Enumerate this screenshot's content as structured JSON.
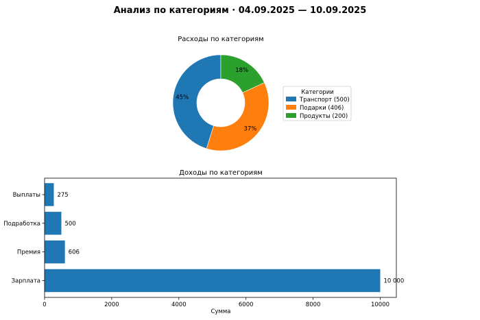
{
  "suptitle": "Анализ по категориям · 04.09.2025 — 10.09.2025",
  "chart_data": [
    {
      "type": "pie",
      "title": "Расходы по категориям",
      "donut": true,
      "labels": [
        "Транспорт",
        "Подарки",
        "Продукты"
      ],
      "values": [
        500,
        406,
        200
      ],
      "percent_labels": [
        "45%",
        "37%",
        "18%"
      ],
      "colors": [
        "#1f77b4",
        "#ff7f0e",
        "#2ca02c"
      ],
      "legend": {
        "title": "Категории",
        "entries": [
          "Транспорт (500)",
          "Подарки (406)",
          "Продукты (200)"
        ],
        "placement": "right"
      }
    },
    {
      "type": "bar",
      "orientation": "horizontal",
      "title": "Доходы по категориям",
      "categories": [
        "Зарплата",
        "Премия",
        "Подработка",
        "Выплаты"
      ],
      "values": [
        10000,
        606,
        500,
        275
      ],
      "value_labels": [
        "10 000",
        "606",
        "500",
        "275"
      ],
      "xlabel": "Сумма",
      "ylabel": "",
      "xlim": [
        0,
        10480
      ],
      "xticks": [
        0,
        2000,
        4000,
        6000,
        8000,
        10000
      ],
      "grid": false,
      "color": "#1f77b4"
    }
  ]
}
